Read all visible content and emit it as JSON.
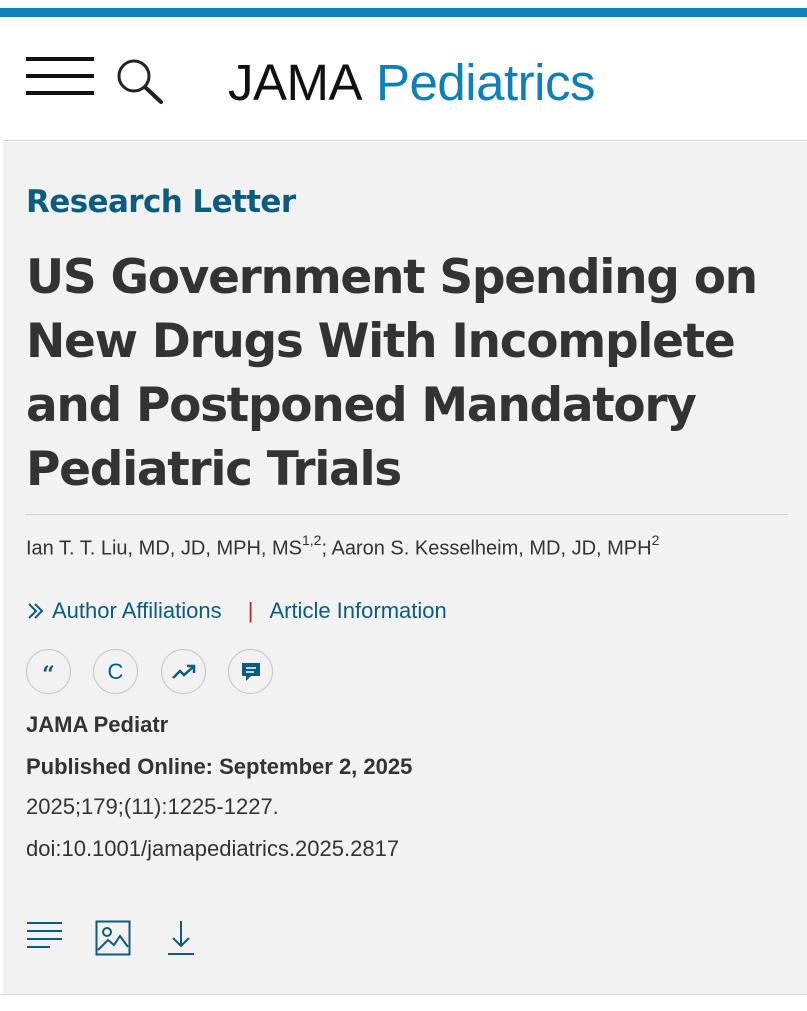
{
  "header": {
    "menu_icon": "hamburger-menu-icon",
    "search_icon": "search-icon",
    "logo_part1": "JAMA",
    "logo_part2": "Pediatrics",
    "brand_color": "#0f7fb9"
  },
  "article": {
    "type": "Research Letter",
    "title": "US Government Spending on New Drugs With Incomplete and Postponed Mandatory Pediatric Trials",
    "author1": "Ian T. T. Liu, MD, JD, MPH, MS",
    "author1_sup": "1,2",
    "author_separator": "; ",
    "author2": "Aaron S. Kesselheim, MD, JD, MPH",
    "author2_sup": "2",
    "affiliations_link": "Author Affiliations",
    "separator": "|",
    "article_info_link": "Article Information",
    "journal": "JAMA Pediatr",
    "published_label": "Published Online: September 2, 2025",
    "citation": "2025;179;(11):1225-1227.",
    "doi": "doi:10.1001/jamapediatrics.2025.2817"
  },
  "actions": {
    "cite_glyph": "“",
    "c_glyph": "C",
    "icons": [
      "cite-icon",
      "permissions-icon",
      "metrics-icon",
      "comment-icon"
    ]
  },
  "toolbar": {
    "icons": [
      "full-text-icon",
      "figures-icon",
      "download-icon"
    ]
  },
  "colors": {
    "accent": "#0b5c7f",
    "separator_red": "#b22a2a",
    "background": "#f2f2f2"
  }
}
